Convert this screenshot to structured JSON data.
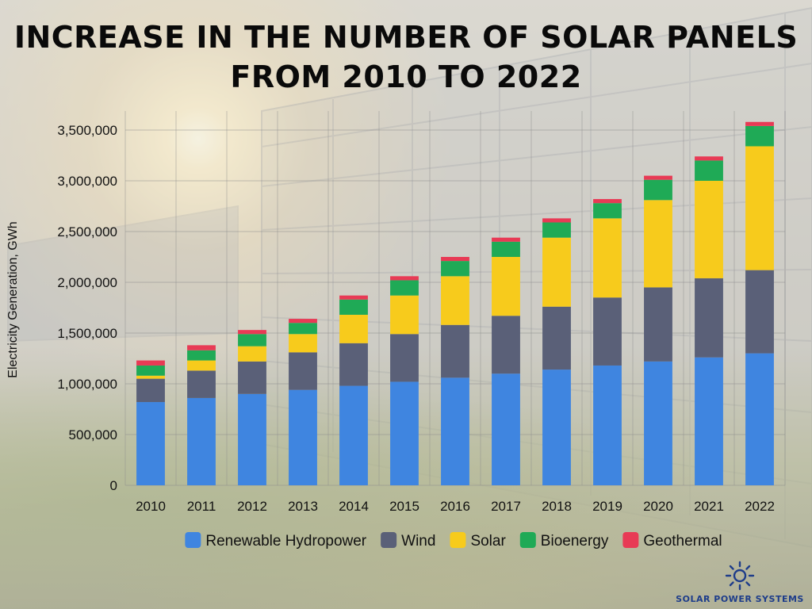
{
  "page": {
    "title_line1": "INCREASE IN THE NUMBER OF SOLAR PANELS",
    "title_line2": "FROM 2010 TO 2022",
    "brand": "SOLAR POWER SYSTEMS",
    "brand_icon": "sun-icon",
    "brand_color": "#1e3d8a"
  },
  "chart_data": {
    "type": "bar",
    "stacked": true,
    "categories": [
      "2010",
      "2011",
      "2012",
      "2013",
      "2014",
      "2015",
      "2016",
      "2017",
      "2018",
      "2019",
      "2020",
      "2021",
      "2022"
    ],
    "ylabel": "Electricity Generation, GWh",
    "xlabel": "",
    "ylim": [
      0,
      3500000
    ],
    "yticks": [
      0,
      500000,
      1000000,
      1500000,
      2000000,
      2500000,
      3000000,
      3500000
    ],
    "ytick_labels": [
      "0",
      "500,000",
      "1,000,000",
      "1,500,000",
      "2,000,000",
      "2,500,000",
      "3,000,000",
      "3,500,000"
    ],
    "grid": true,
    "legend_position": "bottom",
    "series": [
      {
        "name": "Renewable Hydropower",
        "color": "#3f85e0",
        "values": [
          820000,
          860000,
          900000,
          940000,
          980000,
          1020000,
          1060000,
          1100000,
          1140000,
          1180000,
          1220000,
          1260000,
          1300000
        ]
      },
      {
        "name": "Wind",
        "color": "#5a6078",
        "values": [
          230000,
          270000,
          320000,
          370000,
          420000,
          470000,
          520000,
          570000,
          620000,
          670000,
          730000,
          780000,
          820000
        ]
      },
      {
        "name": "Solar",
        "color": "#f7cb1c",
        "values": [
          30000,
          100000,
          150000,
          180000,
          280000,
          380000,
          480000,
          580000,
          680000,
          780000,
          860000,
          960000,
          1220000
        ]
      },
      {
        "name": "Bioenergy",
        "color": "#1faa56",
        "values": [
          100000,
          100000,
          120000,
          110000,
          150000,
          150000,
          150000,
          150000,
          150000,
          150000,
          200000,
          200000,
          200000
        ]
      },
      {
        "name": "Geothermal",
        "color": "#e83a55",
        "values": [
          50000,
          50000,
          40000,
          40000,
          40000,
          40000,
          40000,
          40000,
          40000,
          40000,
          40000,
          40000,
          40000
        ]
      }
    ]
  }
}
